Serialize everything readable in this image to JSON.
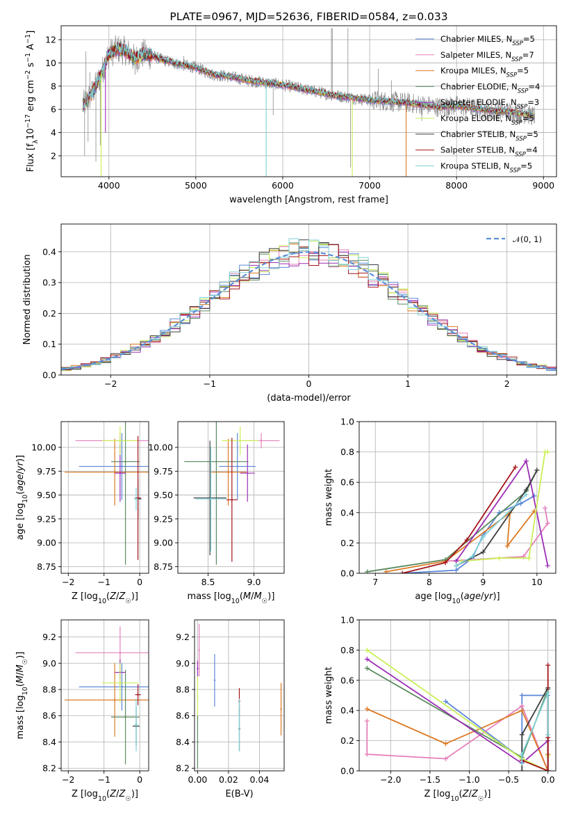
{
  "palette": {
    "Chabrier MILES": "#5b86d8",
    "Salpeter MILES": "#e57fb9",
    "Kroupa MILES": "#dc7a24",
    "Chabrier ELODIE": "#5a8a5f",
    "Salpeter ELODIE": "#9b2fb5",
    "Kroupa ELODIE": "#c9ef53",
    "Chabrier STELIB": "#3d3d3d",
    "Salpeter STELIB": "#a3141a",
    "Kroupa STELIB": "#7ed1d6",
    "data": "#8a8a8a",
    "normal": "#5a8ed8"
  },
  "chart_data": [
    {
      "id": "spectrum",
      "type": "line",
      "title": "PLATE=0967, MJD=52636, FIBERID=0584, z=0.033",
      "xlabel": "wavelength [Angstrom, rest frame]",
      "ylabel": "Flux [f_λ10^-17 erg cm^-2 s^-1 A^-1]",
      "xlim": [
        3450,
        9150
      ],
      "ylim": [
        0.2,
        13.2
      ],
      "xticks": [
        4000,
        5000,
        6000,
        7000,
        8000,
        9000
      ],
      "yticks": [
        2,
        4,
        6,
        8,
        10,
        12
      ],
      "legend_position": "top-right",
      "legend": [
        {
          "model": "Chabrier MILES",
          "label": "Chabrier MILES, N",
          "sub": "SSP",
          "tail": "=5"
        },
        {
          "model": "Salpeter MILES",
          "label": "Salpeter MILES, N",
          "sub": "SSP",
          "tail": "=7"
        },
        {
          "model": "Kroupa MILES",
          "label": "Kroupa MILES, N",
          "sub": "SSP",
          "tail": "=5"
        },
        {
          "model": "Chabrier ELODIE",
          "label": "Chabrier ELODIE, N",
          "sub": "SSP",
          "tail": "=4"
        },
        {
          "model": "Salpeter ELODIE",
          "label": "Salpeter ELODIE, N",
          "sub": "SSP",
          "tail": "=3"
        },
        {
          "model": "Kroupa ELODIE",
          "label": "Kroupa ELODIE, N",
          "sub": "SSP",
          "tail": "=5"
        },
        {
          "model": "Chabrier STELIB",
          "label": "Chabrier STELIB, N",
          "sub": "SSP",
          "tail": "=5"
        },
        {
          "model": "Salpeter STELIB",
          "label": "Salpeter STELIB, N",
          "sub": "SSP",
          "tail": "=4"
        },
        {
          "model": "Kroupa STELIB",
          "label": "Kroupa STELIB, N",
          "sub": "SSP",
          "tail": "=5"
        }
      ],
      "continuum": {
        "wavelength": [
          3700,
          3800,
          3900,
          4000,
          4100,
          4200,
          4300,
          4400,
          4500,
          4600,
          4700,
          4800,
          5000,
          5200,
          5400,
          5600,
          5800,
          6000,
          6200,
          6400,
          6600,
          6800,
          7000,
          7200,
          7400,
          7600,
          7800,
          8000,
          8200,
          8400,
          8600,
          8800,
          8900
        ],
        "flux": [
          6.3,
          7.3,
          8.8,
          10.8,
          11.2,
          11.0,
          10.3,
          10.8,
          10.6,
          10.3,
          10.1,
          9.9,
          9.6,
          9.0,
          8.8,
          8.5,
          8.3,
          8.1,
          7.8,
          7.5,
          7.2,
          7.0,
          6.8,
          6.7,
          6.6,
          6.4,
          6.2,
          6.3,
          6.1,
          5.9,
          5.8,
          5.6,
          5.4
        ]
      },
      "data_spikes": {
        "wavelength": [
          3720,
          3735,
          3760,
          3780,
          3850,
          3900,
          4300,
          4860,
          5890,
          6560,
          6570,
          6750,
          6780,
          7100,
          7250,
          7600
        ],
        "flux": [
          2.0,
          11.0,
          3.2,
          9.2,
          1.5,
          2.9,
          9.0,
          10.6,
          5.5,
          13.0,
          13.0,
          13.0,
          1.0,
          9.5,
          8.5,
          5.0
        ]
      },
      "model_dropouts": [
        {
          "model": "Kroupa ELODIE",
          "wavelength": 3910,
          "flux": 0.2
        },
        {
          "model": "Salpeter ELODIE",
          "wavelength": 3960,
          "flux": 4.0
        },
        {
          "model": "Kroupa STELIB",
          "wavelength": 5810,
          "flux": 0.2
        },
        {
          "model": "Kroupa ELODIE",
          "wavelength": 6800,
          "flux": 0.2
        },
        {
          "model": "Kroupa MILES",
          "wavelength": 7420,
          "flux": 0.2
        }
      ]
    },
    {
      "id": "residuals",
      "type": "histogram",
      "xlabel": "(data-model)/error",
      "ylabel": "Normed distribution",
      "xlim": [
        -2.5,
        2.5
      ],
      "ylim": [
        0,
        0.49
      ],
      "xticks": [
        -2,
        -1,
        0,
        1,
        2
      ],
      "yticks": [
        0.0,
        0.1,
        0.2,
        0.3,
        0.4
      ],
      "legend_position": "top-right",
      "legend": [
        {
          "label": "𝒩(0, 1)",
          "style": "dashed"
        }
      ],
      "bin_width": 0.1,
      "bin_start": -2.5
    },
    {
      "id": "age-vs-Z",
      "type": "scatter",
      "xlabel": "Z [log10(Z/Z☉)]",
      "ylabel": "age  [log10(age/yr)]",
      "xlim": [
        -2.2,
        0.25
      ],
      "ylim": [
        8.68,
        10.27
      ],
      "xticks": [
        -2,
        -1,
        0
      ],
      "yticks": [
        8.75,
        9.0,
        9.25,
        9.5,
        9.75,
        10.0
      ],
      "series": [
        {
          "model": "Chabrier MILES",
          "x": -0.5,
          "xerr": 1.2,
          "y": 9.8,
          "yerr": 0.35
        },
        {
          "model": "Salpeter MILES",
          "x": -0.55,
          "xerr": 1.25,
          "y": 10.07,
          "yerr": 0.08
        },
        {
          "model": "Kroupa MILES",
          "x": -0.7,
          "xerr": 1.4,
          "y": 9.74,
          "yerr": 0.35
        },
        {
          "model": "Chabrier ELODIE",
          "x": -0.4,
          "xerr": 0.4,
          "y": 9.85,
          "yerr": 1.08
        },
        {
          "model": "Salpeter ELODIE",
          "x": -0.55,
          "xerr": 0.15,
          "y": 9.73,
          "yerr": 0.3
        },
        {
          "model": "Kroupa ELODIE",
          "x": -0.55,
          "xerr": 0.5,
          "y": 10.07,
          "yerr": 0.15
        },
        {
          "model": "Chabrier STELIB",
          "x": -0.05,
          "xerr": 0.1,
          "y": 9.46,
          "yerr": 0.2
        },
        {
          "model": "Salpeter STELIB",
          "x": -0.05,
          "xerr": 0.08,
          "y": 9.47,
          "yerr": 0.65
        },
        {
          "model": "Kroupa STELIB",
          "x": -0.1,
          "xerr": 0.06,
          "y": 9.46,
          "yerr": 0.12
        }
      ]
    },
    {
      "id": "age-vs-mass",
      "type": "scatter",
      "xlabel": "mass [log10(M/M☉)]",
      "ylabel": "",
      "xlim": [
        8.17,
        9.33
      ],
      "ylim": [
        8.68,
        10.27
      ],
      "xticks": [
        8.5,
        9.0
      ],
      "yticks": [
        8.75,
        9.0,
        9.25,
        9.5,
        9.75,
        10.0
      ],
      "series": [
        {
          "model": "Chabrier MILES",
          "x": 8.82,
          "xerr": 0.2,
          "y": 9.8,
          "yerr": 0.35
        },
        {
          "model": "Salpeter MILES",
          "x": 9.08,
          "xerr": 0.2,
          "y": 10.07,
          "yerr": 0.08
        },
        {
          "model": "Kroupa MILES",
          "x": 8.72,
          "xerr": 0.2,
          "y": 9.74,
          "yerr": 0.35
        },
        {
          "model": "Chabrier ELODIE",
          "x": 8.59,
          "xerr": 0.35,
          "y": 9.85,
          "yerr": 1.08
        },
        {
          "model": "Salpeter ELODIE",
          "x": 8.93,
          "xerr": 0.08,
          "y": 9.73,
          "yerr": 0.3
        },
        {
          "model": "Kroupa ELODIE",
          "x": 8.85,
          "xerr": 0.2,
          "y": 10.07,
          "yerr": 0.15
        },
        {
          "model": "Chabrier STELIB",
          "x": 8.52,
          "xerr": 0.18,
          "y": 9.47,
          "yerr": 0.6
        },
        {
          "model": "Salpeter STELIB",
          "x": 8.76,
          "xerr": 0.06,
          "y": 9.45,
          "yerr": 0.65
        },
        {
          "model": "Kroupa STELIB",
          "x": 8.53,
          "xerr": 0.17,
          "y": 9.46,
          "yerr": 0.55
        }
      ]
    },
    {
      "id": "weight-vs-age",
      "type": "line",
      "xlabel": "age  [log10(age/yr)]",
      "ylabel": "mass weight",
      "xlim": [
        6.7,
        10.35
      ],
      "ylim": [
        0,
        1
      ],
      "xticks": [
        7,
        8,
        9,
        10
      ],
      "yticks": [
        0.0,
        0.2,
        0.4,
        0.6,
        0.8,
        1.0
      ],
      "series": [
        {
          "model": "Chabrier MILES",
          "x": [
            7.5,
            8.5,
            8.8,
            9.0,
            9.3,
            9.7,
            9.95
          ],
          "y": [
            0.0,
            0.02,
            0.1,
            0.25,
            0.4,
            0.46,
            0.51
          ]
        },
        {
          "model": "Salpeter MILES",
          "x": [
            10.15,
            10.2,
            9.75,
            8.3
          ],
          "y": [
            0.43,
            0.33,
            0.11,
            0.08
          ]
        },
        {
          "model": "Kroupa MILES",
          "x": [
            7.2,
            8.3,
            9.5,
            9.45,
            9.95
          ],
          "y": [
            0.01,
            0.08,
            0.4,
            0.18,
            0.41
          ]
        },
        {
          "model": "Chabrier ELODIE",
          "x": [
            6.85,
            8.3,
            9.8,
            10.0
          ],
          "y": [
            0.01,
            0.09,
            0.54,
            0.68
          ]
        },
        {
          "model": "Salpeter ELODIE",
          "x": [
            8.5,
            9.8,
            10.2
          ],
          "y": [
            0.08,
            0.74,
            0.05
          ]
        },
        {
          "model": "Kroupa ELODIE",
          "x": [
            8.6,
            9.3,
            9.85,
            10.15,
            10.2
          ],
          "y": [
            0.08,
            0.1,
            0.1,
            0.8,
            0.8
          ]
        },
        {
          "model": "Chabrier STELIB",
          "x": [
            8.5,
            9.0,
            9.8,
            10.0
          ],
          "y": [
            0.05,
            0.14,
            0.55,
            0.68
          ]
        },
        {
          "model": "Salpeter STELIB",
          "x": [
            7.5,
            8.3,
            8.7,
            9.6
          ],
          "y": [
            0.0,
            0.07,
            0.22,
            0.7
          ]
        },
        {
          "model": "Kroupa STELIB",
          "x": [
            8.5,
            8.8,
            9.0,
            9.8
          ],
          "y": [
            0.05,
            0.11,
            0.24,
            0.52
          ]
        }
      ]
    },
    {
      "id": "mass-vs-Z",
      "type": "scatter",
      "xlabel": "Z [log10(Z/Z☉)]",
      "ylabel": "mass [log10(M/M☉)]",
      "xlim": [
        -2.2,
        0.25
      ],
      "ylim": [
        8.18,
        9.33
      ],
      "xticks": [
        -2,
        -1,
        0
      ],
      "yticks": [
        8.2,
        8.4,
        8.6,
        8.8,
        9.0,
        9.2
      ],
      "series": [
        {
          "model": "Chabrier MILES",
          "x": -0.5,
          "xerr": 1.2,
          "y": 8.82,
          "yerr": 0.18
        },
        {
          "model": "Salpeter MILES",
          "x": -0.55,
          "xerr": 1.25,
          "y": 9.08,
          "yerr": 0.2
        },
        {
          "model": "Kroupa MILES",
          "x": -0.7,
          "xerr": 1.4,
          "y": 8.72,
          "yerr": 0.28
        },
        {
          "model": "Chabrier ELODIE",
          "x": -0.4,
          "xerr": 0.4,
          "y": 8.59,
          "yerr": 0.36
        },
        {
          "model": "Salpeter ELODIE",
          "x": -0.55,
          "xerr": 0.15,
          "y": 8.93,
          "yerr": 0.1
        },
        {
          "model": "Kroupa ELODIE",
          "x": -0.55,
          "xerr": 0.5,
          "y": 8.85,
          "yerr": 0.15
        },
        {
          "model": "Chabrier STELIB",
          "x": -0.1,
          "xerr": 0.1,
          "y": 8.52,
          "yerr": 0.15
        },
        {
          "model": "Salpeter STELIB",
          "x": -0.05,
          "xerr": 0.08,
          "y": 8.76,
          "yerr": 0.08
        },
        {
          "model": "Kroupa STELIB",
          "x": -0.1,
          "xerr": 0.06,
          "y": 8.53,
          "yerr": 0.2
        }
      ]
    },
    {
      "id": "mass-vs-ebv",
      "type": "scatter",
      "xlabel": "E(B-V)",
      "ylabel": "",
      "xlim": [
        -0.002,
        0.056
      ],
      "ylim": [
        8.18,
        9.33
      ],
      "xticks": [
        0.0,
        0.02,
        0.04
      ],
      "yticks": [
        8.2,
        8.4,
        8.6,
        8.8,
        9.0,
        9.2
      ],
      "series": [
        {
          "model": "Chabrier MILES",
          "x": 0.011,
          "y": 8.87,
          "yerr": 0.2
        },
        {
          "model": "Salpeter MILES",
          "x": 0.001,
          "y": 9.1,
          "yerr": 0.2
        },
        {
          "model": "Kroupa MILES",
          "x": 0.054,
          "y": 8.65,
          "yerr": 0.2
        },
        {
          "model": "Chabrier ELODIE",
          "x": 0.0,
          "y": 8.4,
          "yerr": 0.2
        },
        {
          "model": "Salpeter ELODIE",
          "x": 0.0,
          "y": 8.96,
          "yerr": 0.06
        },
        {
          "model": "Kroupa ELODIE",
          "x": 0.0,
          "y": 8.75,
          "yerr": 0.15
        },
        {
          "model": "Chabrier STELIB",
          "x": 0.027,
          "y": 8.5,
          "yerr": 0.17
        },
        {
          "model": "Salpeter STELIB",
          "x": 0.027,
          "y": 8.71,
          "yerr": 0.1
        },
        {
          "model": "Kroupa STELIB",
          "x": 0.027,
          "y": 8.53,
          "yerr": 0.2
        }
      ]
    },
    {
      "id": "weight-vs-Z",
      "type": "line",
      "xlabel": "Z [log10(Z/Z☉)]",
      "ylabel": "mass weight",
      "xlim": [
        -2.4,
        0.1
      ],
      "ylim": [
        0,
        1
      ],
      "xticks": [
        -2.0,
        -1.5,
        -1.0,
        -0.5,
        0.0
      ],
      "yticks": [
        0.0,
        0.2,
        0.4,
        0.6,
        0.8,
        1.0
      ],
      "series": [
        {
          "model": "Chabrier MILES",
          "x": [
            -1.3,
            -0.33,
            -0.33,
            0.0,
            0.0
          ],
          "y": [
            0.46,
            0.08,
            0.5,
            0.5,
            0.0
          ]
        },
        {
          "model": "Salpeter MILES",
          "x": [
            -2.3,
            -2.3,
            -1.3,
            -0.33,
            0.0
          ],
          "y": [
            0.33,
            0.11,
            0.08,
            0.43,
            0.0
          ]
        },
        {
          "model": "Kroupa MILES",
          "x": [
            -2.3,
            -1.3,
            -0.33,
            0.0,
            0.0
          ],
          "y": [
            0.41,
            0.18,
            0.4,
            0.0,
            0.11
          ]
        },
        {
          "model": "Chabrier ELODIE",
          "x": [
            -2.3,
            -0.33,
            0.0,
            0.0
          ],
          "y": [
            0.68,
            0.09,
            0.54,
            0.0
          ]
        },
        {
          "model": "Salpeter ELODIE",
          "x": [
            -2.3,
            -0.33,
            0.0,
            0.0
          ],
          "y": [
            0.74,
            0.05,
            0.2,
            0.0
          ]
        },
        {
          "model": "Kroupa ELODIE",
          "x": [
            -2.3,
            -0.33,
            0.0,
            0.0
          ],
          "y": [
            0.8,
            0.08,
            0.0,
            0.1
          ]
        },
        {
          "model": "Chabrier STELIB",
          "x": [
            -0.33,
            -0.33,
            0.0,
            0.0
          ],
          "y": [
            0.0,
            0.24,
            0.55,
            0.0
          ]
        },
        {
          "model": "Salpeter STELIB",
          "x": [
            -0.33,
            0.0,
            0.0,
            0.0
          ],
          "y": [
            0.07,
            0.0,
            0.7,
            0.22
          ]
        },
        {
          "model": "Kroupa STELIB",
          "x": [
            -0.33,
            -0.33,
            0.0,
            0.0
          ],
          "y": [
            0.05,
            0.11,
            0.52,
            0.24
          ]
        }
      ]
    }
  ]
}
